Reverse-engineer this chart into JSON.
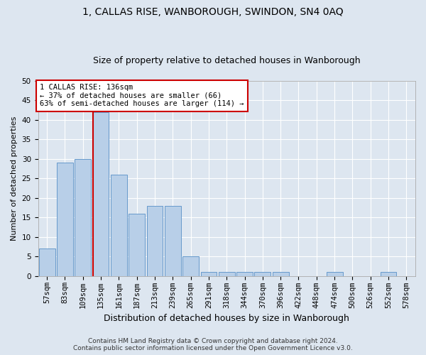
{
  "title": "1, CALLAS RISE, WANBOROUGH, SWINDON, SN4 0AQ",
  "subtitle": "Size of property relative to detached houses in Wanborough",
  "xlabel": "Distribution of detached houses by size in Wanborough",
  "ylabel": "Number of detached properties",
  "footer_line1": "Contains HM Land Registry data © Crown copyright and database right 2024.",
  "footer_line2": "Contains public sector information licensed under the Open Government Licence v3.0.",
  "categories": [
    "57sqm",
    "83sqm",
    "109sqm",
    "135sqm",
    "161sqm",
    "187sqm",
    "213sqm",
    "239sqm",
    "265sqm",
    "291sqm",
    "318sqm",
    "344sqm",
    "370sqm",
    "396sqm",
    "422sqm",
    "448sqm",
    "474sqm",
    "500sqm",
    "526sqm",
    "552sqm",
    "578sqm"
  ],
  "values": [
    7,
    29,
    30,
    42,
    26,
    16,
    18,
    18,
    5,
    1,
    1,
    1,
    1,
    1,
    0,
    0,
    1,
    0,
    0,
    1,
    0
  ],
  "bar_color": "#b8cfe8",
  "bar_edge_color": "#6699cc",
  "vline_color": "#cc0000",
  "vline_x_index": 3,
  "annotation_text": "1 CALLAS RISE: 136sqm\n← 37% of detached houses are smaller (66)\n63% of semi-detached houses are larger (114) →",
  "annotation_box_facecolor": "#ffffff",
  "annotation_box_edgecolor": "#cc0000",
  "ylim": [
    0,
    50
  ],
  "yticks": [
    0,
    5,
    10,
    15,
    20,
    25,
    30,
    35,
    40,
    45,
    50
  ],
  "background_color": "#dde6f0",
  "plot_background": "#dde6f0",
  "grid_color": "#ffffff",
  "title_fontsize": 10,
  "subtitle_fontsize": 9,
  "ylabel_fontsize": 8,
  "xlabel_fontsize": 9,
  "tick_fontsize": 7.5,
  "annotation_fontsize": 7.5,
  "footer_fontsize": 6.5
}
